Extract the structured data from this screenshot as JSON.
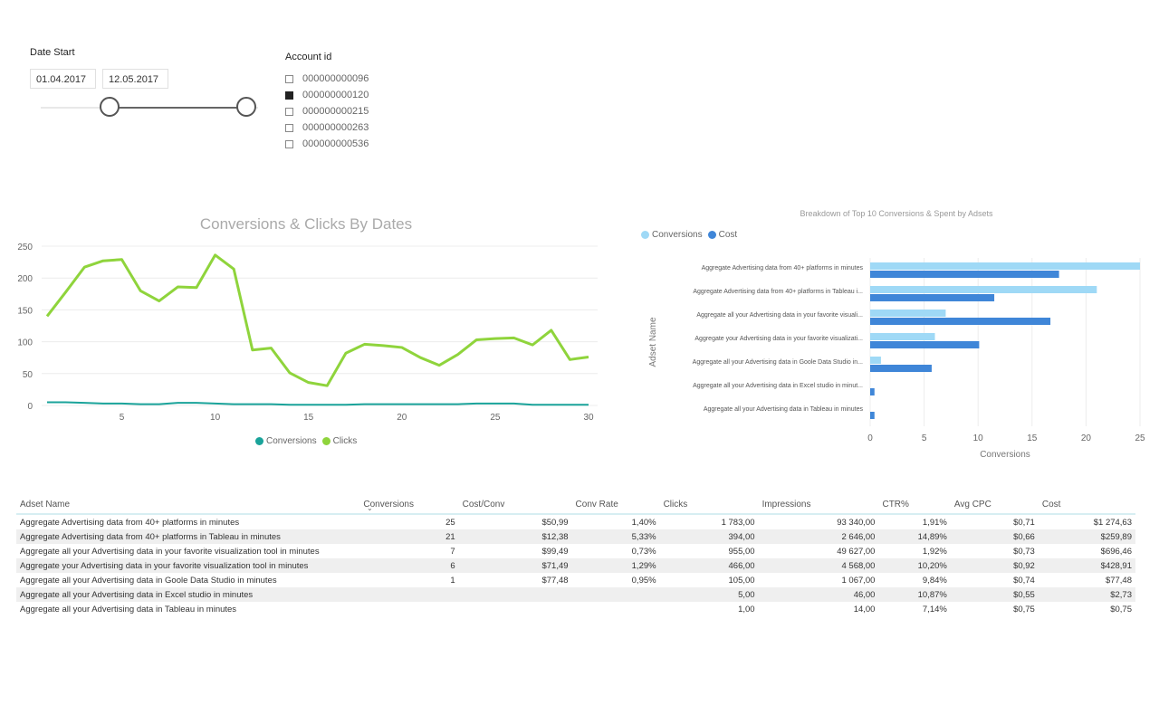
{
  "date_slicer": {
    "title": "Date Start",
    "from": "01.04.2017",
    "to": "12.05.2017"
  },
  "account_slicer": {
    "title": "Account id",
    "items": [
      {
        "label": "000000000096",
        "checked": false
      },
      {
        "label": "000000000120",
        "checked": true
      },
      {
        "label": "000000000215",
        "checked": false
      },
      {
        "label": "000000000263",
        "checked": false
      },
      {
        "label": "000000000536",
        "checked": false
      }
    ]
  },
  "colors": {
    "clicks": "#8fd43c",
    "conversions": "#1aa39a",
    "bar_conversions": "#9fd9f6",
    "bar_cost": "#3f86d8",
    "grid": "#ececec",
    "table_header_border": "#d7eef2"
  },
  "chart_data": [
    {
      "type": "line",
      "title": "Conversions & Clicks By Dates",
      "x": [
        1,
        2,
        3,
        4,
        5,
        6,
        7,
        8,
        9,
        10,
        11,
        12,
        13,
        14,
        15,
        16,
        17,
        18,
        19,
        20,
        21,
        22,
        23,
        24,
        25,
        26,
        27,
        28,
        29,
        30
      ],
      "ylim": [
        0,
        250
      ],
      "yticks": [
        0,
        50,
        100,
        150,
        200,
        250
      ],
      "xticks": [
        5,
        10,
        15,
        20,
        25,
        30
      ],
      "grid": true,
      "legend_position": "bottom",
      "series": [
        {
          "name": "Conversions",
          "values": [
            5,
            5,
            4,
            3,
            3,
            2,
            2,
            4,
            4,
            3,
            2,
            2,
            2,
            1,
            1,
            1,
            1,
            2,
            2,
            2,
            2,
            2,
            2,
            3,
            3,
            3,
            1,
            1,
            1,
            1
          ]
        },
        {
          "name": "Clicks",
          "values": [
            140,
            178,
            217,
            227,
            229,
            180,
            164,
            186,
            185,
            236,
            214,
            87,
            90,
            51,
            36,
            31,
            82,
            96,
            94,
            91,
            75,
            63,
            80,
            103,
            105,
            106,
            95,
            118,
            72,
            76
          ]
        }
      ]
    },
    {
      "type": "bar",
      "orientation": "horizontal",
      "title": "Breakdown of Top 10 Conversions & Spent by Adsets",
      "ylabel": "Adset Name",
      "xlabel": "Conversions",
      "xlim": [
        0,
        25
      ],
      "xticks": [
        0,
        5,
        10,
        15,
        20,
        25
      ],
      "legend_position": "top-left",
      "categories": [
        "Aggregate Advertising data from 40+ platforms in minutes",
        "Aggregate Advertising data from 40+ platforms in Tableau i...",
        "Aggregate all your Advertising data in your favorite visuali...",
        "Aggregate your Advertising data in your favorite visualizati...",
        "Aggregate all your Advertising data in Goole Data Studio in...",
        "Aggregate all your Advertising data in Excel studio in minut...",
        "Aggregate all your Advertising data in Tableau in minutes"
      ],
      "series": [
        {
          "name": "Conversions",
          "values": [
            25,
            21,
            7,
            6,
            1,
            0,
            0
          ]
        },
        {
          "name": "Cost",
          "values": [
            17.5,
            11.5,
            16.7,
            10.1,
            5.7,
            0.4,
            0.4
          ]
        }
      ]
    }
  ],
  "table": {
    "columns": [
      "Adset Name",
      "Conversions",
      "Cost/Conv",
      "Conv Rate",
      "Clicks",
      "Impressions",
      "CTR%",
      "Avg CPC",
      "Cost"
    ],
    "rows": [
      [
        "Aggregate Advertising data from 40+ platforms in minutes",
        "25",
        "$50,99",
        "1,40%",
        "1 783,00",
        "93 340,00",
        "1,91%",
        "$0,71",
        "$1 274,63"
      ],
      [
        "Aggregate Advertising data from 40+ platforms in Tableau in minutes",
        "21",
        "$12,38",
        "5,33%",
        "394,00",
        "2 646,00",
        "14,89%",
        "$0,66",
        "$259,89"
      ],
      [
        "Aggregate all your Advertising data in your favorite visualization tool in minutes",
        "7",
        "$99,49",
        "0,73%",
        "955,00",
        "49 627,00",
        "1,92%",
        "$0,73",
        "$696,46"
      ],
      [
        "Aggregate your Advertising data in your favorite visualization tool in minutes",
        "6",
        "$71,49",
        "1,29%",
        "466,00",
        "4 568,00",
        "10,20%",
        "$0,92",
        "$428,91"
      ],
      [
        "Aggregate all your Advertising data in Goole Data Studio in minutes",
        "1",
        "$77,48",
        "0,95%",
        "105,00",
        "1 067,00",
        "9,84%",
        "$0,74",
        "$77,48"
      ],
      [
        "Aggregate all your Advertising data in Excel studio in minutes",
        "",
        "",
        "",
        "5,00",
        "46,00",
        "10,87%",
        "$0,55",
        "$2,73"
      ],
      [
        "Aggregate all your Advertising data in Tableau in minutes",
        "",
        "",
        "",
        "1,00",
        "14,00",
        "7,14%",
        "$0,75",
        "$0,75"
      ]
    ]
  }
}
